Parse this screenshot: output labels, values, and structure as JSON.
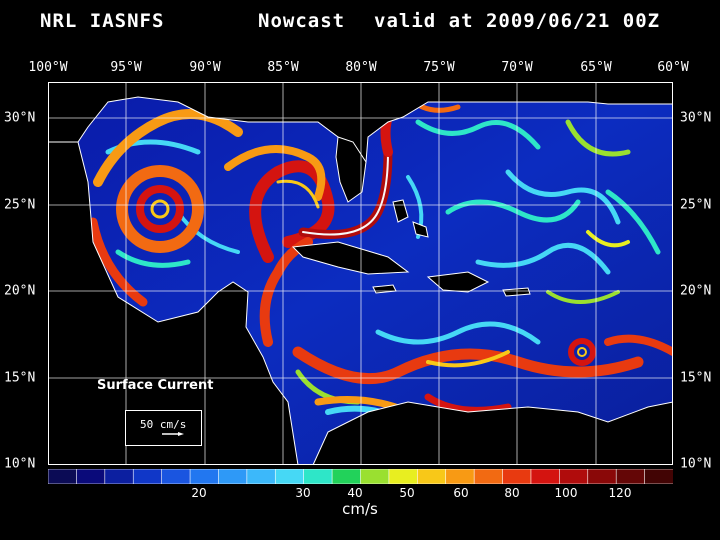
{
  "title": {
    "left": "NRL IASNFS",
    "middle": "Nowcast",
    "right": "valid at 2009/06/21 00Z"
  },
  "longitude_labels": [
    "100°W",
    "95°W",
    "90°W",
    "85°W",
    "80°W",
    "75°W",
    "70°W",
    "65°W",
    "60°W"
  ],
  "latitude_labels": [
    "30°N",
    "25°N",
    "20°N",
    "15°N",
    "10°N"
  ],
  "map": {
    "field": "Surface Current",
    "reference_vector": "50 cm/s",
    "land_color": "#000000",
    "coastline_color": "#ffffff",
    "domain": {
      "lon_min": -100,
      "lon_max": -60,
      "lat_min": 10,
      "lat_max": 31
    }
  },
  "colorbar": {
    "units": "cm/s",
    "tick_labels": [
      "20",
      "30",
      "40",
      "50",
      "60",
      "80",
      "100",
      "120"
    ],
    "colors": [
      "#0b0b55",
      "#0a0a7a",
      "#0c1fa0",
      "#1037c8",
      "#1a55e0",
      "#2277f0",
      "#2e99f7",
      "#3cb8fa",
      "#46d8f5",
      "#2ee6c8",
      "#22d25a",
      "#9ae030",
      "#e8ee20",
      "#f8c818",
      "#f89a14",
      "#f26a12",
      "#e83a10",
      "#d41410",
      "#b00c0c",
      "#8a0808",
      "#640606",
      "#420404"
    ]
  }
}
